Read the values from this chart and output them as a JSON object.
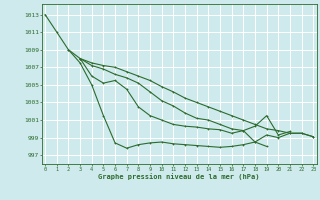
{
  "xlabel": "Graphe pression niveau de la mer (hPa)",
  "background_color": "#ceeaed",
  "grid_color": "#ffffff",
  "line_color": "#2d6b2d",
  "x_ticks": [
    0,
    1,
    2,
    3,
    4,
    5,
    6,
    7,
    8,
    9,
    10,
    11,
    12,
    13,
    14,
    15,
    16,
    17,
    18,
    19,
    20,
    21,
    22,
    23
  ],
  "y_ticks": [
    997,
    999,
    1001,
    1003,
    1005,
    1007,
    1009,
    1011,
    1013
  ],
  "ylim": [
    996.0,
    1014.2
  ],
  "xlim": [
    -0.3,
    23.3
  ],
  "lines": [
    [
      1013,
      1011,
      1009,
      1007.5,
      1005,
      1001.5,
      998.4,
      997.8,
      998.2,
      998.4,
      998.5,
      998.3,
      998.2,
      998.1,
      998.0,
      997.9,
      998.0,
      998.2,
      998.5,
      999.3,
      999.0,
      999.5,
      999.5,
      999.1
    ],
    [
      null,
      null,
      1009,
      1008,
      1006,
      1005.2,
      1005.5,
      1004.5,
      1002.5,
      1001.5,
      1001,
      1000.5,
      1000.3,
      1000.2,
      1000.0,
      999.9,
      999.5,
      999.8,
      1000.3,
      1001.5,
      999.3,
      999.7,
      null,
      null
    ],
    [
      null,
      null,
      null,
      1008,
      1007.2,
      1006.8,
      1006.2,
      1005.8,
      1005.2,
      1004.2,
      1003.2,
      1002.6,
      1001.8,
      1001.2,
      1001.0,
      1000.5,
      1000.0,
      999.8,
      998.5,
      998.0,
      null,
      null,
      null,
      null
    ],
    [
      null,
      null,
      null,
      1008,
      1007.5,
      1007.2,
      1007.0,
      1006.5,
      1006.0,
      1005.5,
      1004.8,
      1004.2,
      1003.5,
      1003.0,
      1002.5,
      1002.0,
      1001.5,
      1001.0,
      1000.5,
      1000.0,
      999.8,
      999.5,
      999.5,
      999.1
    ]
  ]
}
